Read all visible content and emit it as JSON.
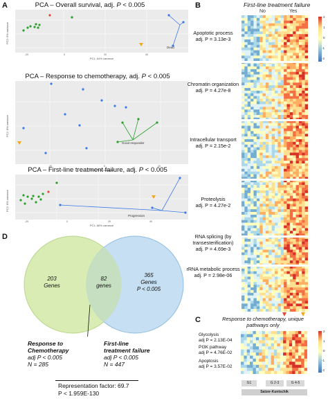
{
  "panels": {
    "a": "A",
    "b": "B",
    "c": "C",
    "d": "D"
  },
  "pca": [
    {
      "title_prefix": "PCA – Overall survival, adj. ",
      "title_p": "P",
      "title_suffix": " < 0.005",
      "xlabel": "PC1: 64% variance",
      "ylabel": "PC2: 9% variance",
      "annotation": "Dead",
      "x_ticks": [
        "-20",
        "0",
        "20",
        "40"
      ]
    },
    {
      "title_prefix": "PCA – Response to chemotherapy, adj. ",
      "title_p": "P",
      "title_suffix": " < 0.005",
      "xlabel": "PC1: 72% variance",
      "ylabel": "PC2: 8% variance",
      "annotation": "Good responder",
      "x_ticks": [
        "-20",
        "0",
        "20"
      ]
    },
    {
      "title_prefix": "PCA – First-line treatment failure, adj. ",
      "title_p": "P",
      "title_suffix": " < 0.005",
      "xlabel": "PC1: 66% variance",
      "ylabel": "PC2: 8% variance",
      "annotation": "Progression",
      "x_ticks": [
        "-20",
        "0",
        "20",
        "40"
      ]
    }
  ],
  "heatmap_b": {
    "title": "First-line treatment failure",
    "col_no": "No",
    "col_yes": "Yes",
    "scale": [
      "2",
      "1",
      "0",
      "-1",
      "-2"
    ],
    "pathways": [
      {
        "name": "Apoptotic process",
        "p": "adj. P = 3.13e-3"
      },
      {
        "name": "Chromatin organization",
        "p": "adj. P = 4.27e-8"
      },
      {
        "name": "Intracellular transport",
        "p": "adj. P = 2.15e-2"
      },
      {
        "name": "Proteolysis",
        "p": "adj. P = 4.27e-2"
      },
      {
        "name": "RNA splicing (by transesterification)",
        "p": "adj. P = 4.69e-3"
      },
      {
        "name": "rRNA metabolic process",
        "p": "adj. P = 2.98e-06"
      }
    ]
  },
  "heatmap_c": {
    "title": "Response to chemotherapy, unique pathways only",
    "pathways": [
      {
        "name": "Glycolysis",
        "p": "adj P = 2.13E-04"
      },
      {
        "name": "PI3K pathway",
        "p": "adj P = 4.76E-02"
      },
      {
        "name": "Apoptosis",
        "p": "adj P = 3.57E-02"
      }
    ],
    "groups": [
      "G1",
      "G 2-3",
      "G 4-5"
    ],
    "classification": "Salzer-Kuntschik",
    "scale": [
      "2",
      "1",
      "0",
      "-1",
      "-2"
    ]
  },
  "venn": {
    "left_count": "203",
    "left_unit": "Genes",
    "middle_count": "82",
    "middle_unit": "genes",
    "right_count": "365",
    "right_unit": "Genes",
    "right_p": "P < 0.005",
    "left_label": [
      "Response to",
      "Chemotherapy",
      "adj P < 0.005",
      "N = 285"
    ],
    "right_label": [
      "First-line",
      "treatment failure",
      "adj P < 0.005",
      "N = 447"
    ],
    "representation": "Representation factor: 69.7",
    "rep_p": "P < 1.959E-130"
  },
  "colors": {
    "green": "#2ca02c",
    "blue": "#3b78e7",
    "red": "#e04b3a",
    "orange": "#f3a81d",
    "venn_left": "#d8ecb4",
    "venn_right": "#bcd9f0",
    "overlap": "#c6dfc0"
  }
}
